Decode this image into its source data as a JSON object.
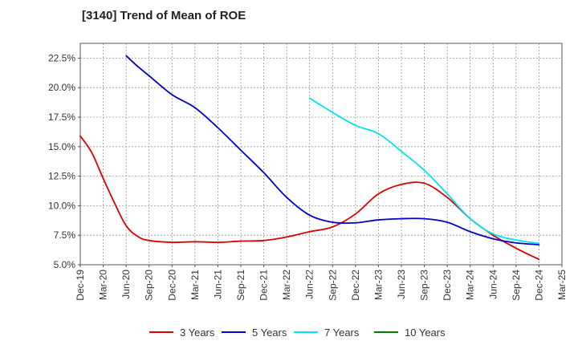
{
  "chart_data": {
    "type": "line",
    "title": "[3140]  Trend of Mean of ROE",
    "xlabel": "",
    "ylabel": "",
    "ylim": [
      5.0,
      23.75
    ],
    "y_ticks": [
      "5.0%",
      "7.5%",
      "10.0%",
      "12.5%",
      "15.0%",
      "17.5%",
      "20.0%",
      "22.5%"
    ],
    "y_tick_values": [
      5.0,
      7.5,
      10.0,
      12.5,
      15.0,
      17.5,
      20.0,
      22.5
    ],
    "x_ticks": [
      "Dec-19",
      "Mar-20",
      "Jun-20",
      "Sep-20",
      "Dec-20",
      "Mar-21",
      "Jun-21",
      "Sep-21",
      "Dec-21",
      "Mar-22",
      "Jun-22",
      "Sep-22",
      "Dec-22",
      "Mar-23",
      "Jun-23",
      "Sep-23",
      "Dec-23",
      "Mar-24",
      "Jun-24",
      "Sep-24",
      "Dec-24",
      "Mar-25"
    ],
    "grid": true,
    "legend_position": "bottom",
    "series": [
      {
        "name": "3 Years",
        "color": "#dd0000",
        "points": [
          [
            0,
            15.9
          ],
          [
            0.5,
            14.5
          ],
          [
            1,
            12.3
          ],
          [
            1.5,
            10.2
          ],
          [
            2,
            8.3
          ],
          [
            2.5,
            7.4
          ],
          [
            3,
            7.05
          ],
          [
            4,
            6.9
          ],
          [
            5,
            6.95
          ],
          [
            6,
            6.9
          ],
          [
            7,
            7.0
          ],
          [
            8,
            7.05
          ],
          [
            9,
            7.35
          ],
          [
            10,
            7.8
          ],
          [
            11,
            8.2
          ],
          [
            12,
            9.3
          ],
          [
            13,
            11.0
          ],
          [
            14,
            11.8
          ],
          [
            15,
            11.9
          ],
          [
            16,
            10.7
          ],
          [
            17,
            8.9
          ],
          [
            18,
            7.5
          ],
          [
            19,
            6.4
          ],
          [
            20,
            5.45
          ]
        ]
      },
      {
        "name": "5 Years",
        "color": "#0000cc",
        "points": [
          [
            2,
            22.7
          ],
          [
            2.5,
            21.8
          ],
          [
            3,
            21.0
          ],
          [
            4,
            19.4
          ],
          [
            5,
            18.3
          ],
          [
            6,
            16.6
          ],
          [
            7,
            14.7
          ],
          [
            8,
            12.8
          ],
          [
            9,
            10.7
          ],
          [
            10,
            9.2
          ],
          [
            11,
            8.6
          ],
          [
            12,
            8.55
          ],
          [
            13,
            8.8
          ],
          [
            14,
            8.9
          ],
          [
            15,
            8.9
          ],
          [
            16,
            8.6
          ],
          [
            17,
            7.8
          ],
          [
            18,
            7.2
          ],
          [
            19,
            6.85
          ],
          [
            20,
            6.7
          ]
        ]
      },
      {
        "name": "7 Years",
        "color": "#00e5ee",
        "points": [
          [
            10,
            19.1
          ],
          [
            11,
            17.9
          ],
          [
            12,
            16.8
          ],
          [
            13,
            16.1
          ],
          [
            14,
            14.6
          ],
          [
            15,
            13.0
          ],
          [
            16,
            11.0
          ],
          [
            17,
            8.9
          ],
          [
            18,
            7.6
          ],
          [
            19,
            7.1
          ],
          [
            20,
            6.8
          ]
        ]
      },
      {
        "name": "10 Years",
        "color": "#008000",
        "points": []
      }
    ]
  }
}
